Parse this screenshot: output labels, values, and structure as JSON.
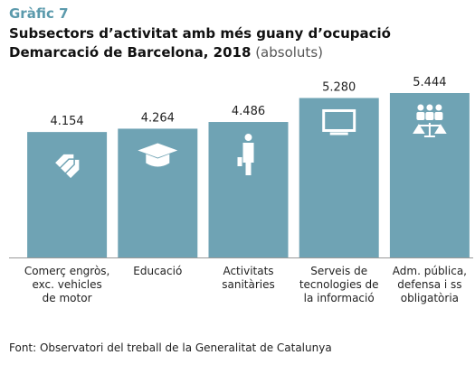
{
  "chart_data": {
    "type": "bar",
    "label": "Gràfic 7",
    "title": "Subsectors d’activitat amb més guany d’ocupació",
    "subtitle": "Demarcació de Barcelona, 2018",
    "unit": "(absoluts)",
    "categories": [
      "Comerç engròs,\nexc. vehicles\nde motor",
      "Educació",
      "Activitats\nsanitàries",
      "Serveis de\ntecnologies de\nla informació",
      "Adm. pública,\ndefensa i ss\nobligatòria"
    ],
    "values": [
      4154,
      4264,
      4486,
      5280,
      5444
    ],
    "value_labels": [
      "4.154",
      "4.264",
      "4.486",
      "5.280",
      "5.444"
    ],
    "color": "#6fa3b4",
    "source": "Font: Observatori del treball de la Generalitat de Catalunya"
  }
}
